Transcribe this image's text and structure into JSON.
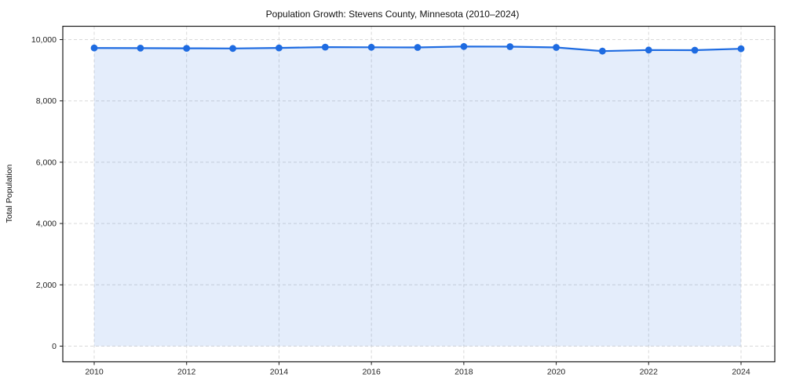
{
  "chart_data": {
    "type": "area",
    "title": "Population Growth: Stevens County, Minnesota (2010–2024)",
    "xlabel": "",
    "ylabel": "Total Population",
    "x": [
      2010,
      2011,
      2012,
      2013,
      2014,
      2015,
      2016,
      2017,
      2018,
      2019,
      2020,
      2021,
      2022,
      2023,
      2024
    ],
    "values": [
      9726,
      9720,
      9715,
      9710,
      9730,
      9755,
      9750,
      9745,
      9775,
      9770,
      9745,
      9625,
      9660,
      9655,
      9700
    ],
    "xticks": [
      2010,
      2012,
      2014,
      2016,
      2018,
      2020,
      2022,
      2024
    ],
    "yticks": [
      0,
      2000,
      4000,
      6000,
      8000,
      10000
    ],
    "ytick_labels": [
      "0",
      "2,000",
      "4,000",
      "6,000",
      "8,000",
      "10,000"
    ],
    "ylim": [
      0,
      10000
    ],
    "grid": true,
    "legend": "none",
    "colors": {
      "line": "#1e6be1",
      "marker": "#1e6be1",
      "fill": "#1e6be1",
      "fill_opacity": 0.12,
      "grid": "#d9d9d9",
      "axis": "#1a1a1a",
      "text": "#222222"
    }
  }
}
